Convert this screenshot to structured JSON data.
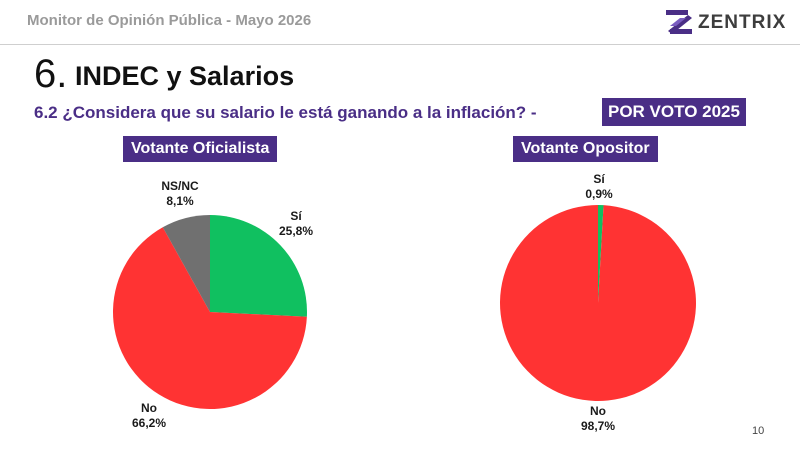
{
  "header": {
    "monitor_title": "Monitor de Opinión Pública - Mayo 2026",
    "logo_text": "ZENTRIX"
  },
  "section": {
    "number": "6.",
    "title": "INDEC y Salarios",
    "question": "6.2 ¿Considera que su salario le está ganando a la inflación? -",
    "badge": "POR VOTO 2025"
  },
  "colors": {
    "accent": "#4a2e86",
    "si": "#10c060",
    "no": "#ff3333",
    "nsnc": "#707070"
  },
  "chart_data": [
    {
      "type": "pie",
      "title": "Votante Oficialista",
      "slices": [
        {
          "label": "Sí",
          "value": 25.8,
          "display": "25,8%",
          "color": "#10c060"
        },
        {
          "label": "No",
          "value": 66.2,
          "display": "66,2%",
          "color": "#ff3333"
        },
        {
          "label": "NS/NC",
          "value": 8.1,
          "display": "8,1%",
          "color": "#707070"
        }
      ]
    },
    {
      "type": "pie",
      "title": "Votante Opositor",
      "slices": [
        {
          "label": "Sí",
          "value": 0.9,
          "display": "0,9%",
          "color": "#10c060"
        },
        {
          "label": "No",
          "value": 98.7,
          "display": "98,7%",
          "color": "#ff3333"
        }
      ]
    }
  ],
  "footer": {
    "page_number": "10"
  }
}
